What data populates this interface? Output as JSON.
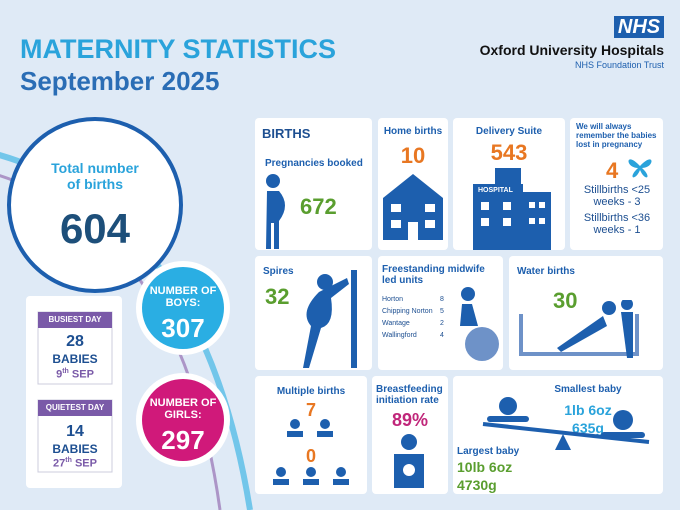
{
  "header": {
    "title": "MATERNITY STATISTICS",
    "subtitle": "September 2025",
    "logo": "NHS",
    "organisation": "Oxford University Hospitals",
    "trust": "NHS Foundation Trust"
  },
  "totals": {
    "births_label": "Total number of births",
    "births": "604",
    "boys_label": "NUMBER OF BOYS:",
    "boys": "307",
    "girls_label": "NUMBER OF GIRLS:",
    "girls": "297"
  },
  "busiest_day": {
    "label": "BUSIEST DAY",
    "count": "28",
    "unit": "BABIES",
    "day": "9",
    "suffix": "th",
    "month": "SEP"
  },
  "quietest_day": {
    "label": "QUIETEST DAY",
    "count": "14",
    "unit": "BABIES",
    "day": "27",
    "suffix": "th",
    "month": "SEP"
  },
  "births": {
    "heading": "BIRTHS",
    "pregnancies_label": "Pregnancies booked",
    "pregnancies": "672"
  },
  "home_births": {
    "label": "Home births",
    "value": "10"
  },
  "delivery_suite": {
    "label": "Delivery Suite",
    "value": "543",
    "icon_label": "HOSPITAL"
  },
  "remember": {
    "label": "We will always remember the babies lost in pregnancy",
    "value": "4",
    "lines": [
      "Stillbirths <25 weeks - 3",
      "Stillbirths <36 weeks - 1"
    ]
  },
  "spires": {
    "label": "Spires",
    "value": "32"
  },
  "freestanding": {
    "label": "Freestanding midwife led units",
    "units": [
      [
        "Horton",
        "8"
      ],
      [
        "Chipping Norton",
        "5"
      ],
      [
        "Wantage",
        "2"
      ],
      [
        "Wallingford",
        "4"
      ]
    ]
  },
  "water_births": {
    "label": "Water births",
    "value": "30"
  },
  "multiple_births": {
    "label": "Multiple births",
    "twins": "7",
    "triplets": "0"
  },
  "breastfeeding": {
    "label": "Breastfeeding initiation rate",
    "value": "89%"
  },
  "smallest_baby": {
    "label": "Smallest baby",
    "imperial": "1lb 6oz",
    "metric": "635g"
  },
  "largest_baby": {
    "label": "Largest baby",
    "imperial": "10lb 6oz",
    "metric": "4730g"
  }
}
